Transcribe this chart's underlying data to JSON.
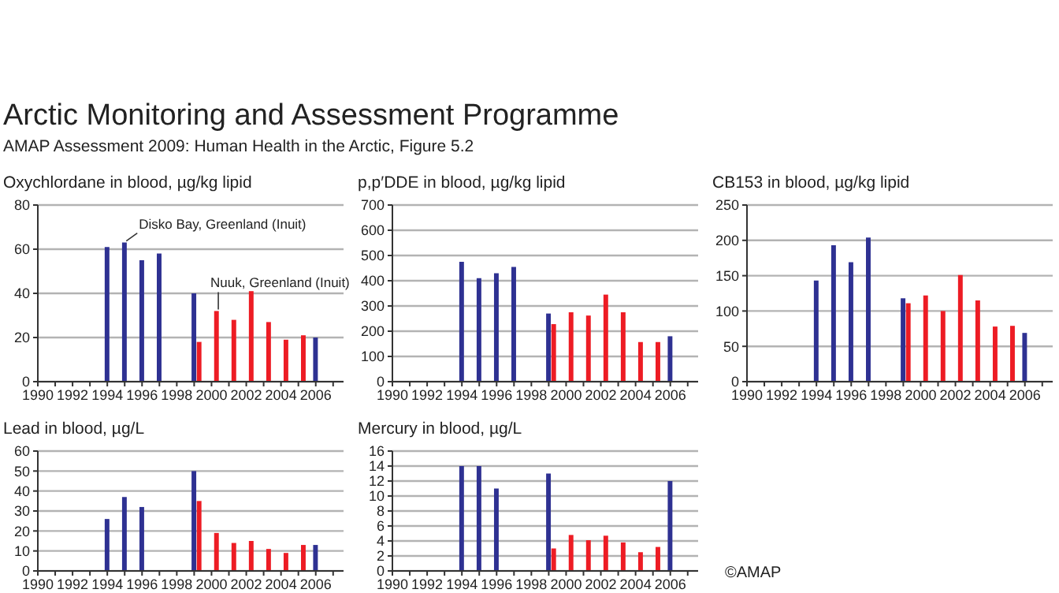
{
  "chart_data": [
    {
      "type": "bar",
      "title": "Oxychlordane in blood, µg/kg lipid",
      "xlim": [
        1990,
        2007.6
      ],
      "xticks": [
        1990,
        {
          "value": 1991,
          "label": null
        },
        1992,
        {
          "value": 1993,
          "label": null
        },
        1994,
        {
          "value": 1995,
          "label": null
        },
        1996,
        {
          "value": 1997,
          "label": null
        },
        1998,
        {
          "value": 1999,
          "label": null
        },
        2000,
        {
          "value": 2001,
          "label": null
        },
        2002,
        {
          "value": 2003,
          "label": null
        },
        2004,
        {
          "value": 2005,
          "label": null
        },
        2006,
        {
          "value": 2007,
          "label": null
        }
      ],
      "ylim": [
        0,
        80
      ],
      "yticks": [
        0,
        20,
        40,
        60,
        80
      ],
      "grid": "y",
      "series": [
        {
          "name": "Disko Bay, Greenland (Inuit)",
          "color": "#2e3192",
          "x": [
            1994,
            1995,
            1996,
            1997,
            1999,
            2006
          ],
          "values": [
            61,
            63,
            55,
            58,
            40,
            20
          ]
        },
        {
          "name": "Nuuk, Greenland (Inuit)",
          "color": "#ed1c24",
          "x": [
            1999.3,
            2000.3,
            2001.3,
            2002.3,
            2003.3,
            2004.3,
            2005.3
          ],
          "values": [
            18,
            32,
            28,
            41,
            27,
            19,
            21
          ]
        }
      ],
      "annotations": [
        "Arctic Monitoring and Assessment Programme",
        "AMAP Assessment 2009: Human Health in the Arctic, Figure 5.2"
      ]
    },
    {
      "type": "bar",
      "title": "p,p′DDE in blood, µg/kg lipid",
      "xlim": [
        1990,
        2007.6
      ],
      "xticks": [
        1990,
        {
          "value": 1991,
          "label": null
        },
        1992,
        {
          "value": 1993,
          "label": null
        },
        1994,
        {
          "value": 1995,
          "label": null
        },
        1996,
        {
          "value": 1997,
          "label": null
        },
        1998,
        {
          "value": 1999,
          "label": null
        },
        2000,
        {
          "value": 2001,
          "label": null
        },
        2002,
        {
          "value": 2003,
          "label": null
        },
        2004,
        {
          "value": 2005,
          "label": null
        },
        2006,
        {
          "value": 2007,
          "label": null
        }
      ],
      "ylim": [
        0,
        700
      ],
      "yticks": [
        0,
        100,
        200,
        300,
        400,
        500,
        600,
        700
      ],
      "grid": "y",
      "series": [
        {
          "color": "#2e3192",
          "x": [
            1994,
            1995,
            1996,
            1997,
            1999,
            2006
          ],
          "values": [
            475,
            410,
            430,
            455,
            270,
            180
          ]
        },
        {
          "color": "#ed1c24",
          "x": [
            1999.3,
            2000.3,
            2001.3,
            2002.3,
            2003.3,
            2004.3,
            2005.3
          ],
          "values": [
            228,
            275,
            262,
            345,
            275,
            157,
            157
          ]
        }
      ]
    },
    {
      "type": "bar",
      "title": "CB153 in blood, µg/kg lipid",
      "xlim": [
        1990,
        2007.6
      ],
      "xticks": [
        1990,
        {
          "value": 1991,
          "label": null
        },
        1992,
        {
          "value": 1993,
          "label": null
        },
        1994,
        {
          "value": 1995,
          "label": null
        },
        1996,
        {
          "value": 1997,
          "label": null
        },
        1998,
        {
          "value": 1999,
          "label": null
        },
        2000,
        {
          "value": 2001,
          "label": null
        },
        2002,
        {
          "value": 2003,
          "label": null
        },
        2004,
        {
          "value": 2005,
          "label": null
        },
        2006,
        {
          "value": 2007,
          "label": null
        }
      ],
      "ylim": [
        0,
        250
      ],
      "yticks": [
        0,
        50,
        100,
        150,
        200,
        250
      ],
      "grid": "y",
      "series": [
        {
          "color": "#2e3192",
          "x": [
            1994,
            1995,
            1996,
            1997,
            1999,
            2006
          ],
          "values": [
            143,
            193,
            169,
            204,
            118,
            69
          ]
        },
        {
          "color": "#ed1c24",
          "x": [
            1999.3,
            2000.3,
            2001.3,
            2002.3,
            2003.3,
            2004.3,
            2005.3
          ],
          "values": [
            111,
            122,
            100,
            151,
            115,
            78,
            79
          ]
        }
      ]
    },
    {
      "type": "bar",
      "title": "Lead in blood, µg/L",
      "xlim": [
        1990,
        2007.6
      ],
      "xticks": [
        1990,
        {
          "value": 1991,
          "label": null
        },
        1992,
        {
          "value": 1993,
          "label": null
        },
        1994,
        {
          "value": 1995,
          "label": null
        },
        1996,
        {
          "value": 1997,
          "label": null
        },
        1998,
        {
          "value": 1999,
          "label": null
        },
        2000,
        {
          "value": 2001,
          "label": null
        },
        2002,
        {
          "value": 2003,
          "label": null
        },
        2004,
        {
          "value": 2005,
          "label": null
        },
        2006,
        {
          "value": 2007,
          "label": null
        }
      ],
      "ylim": [
        0,
        60
      ],
      "yticks": [
        0,
        10,
        20,
        30,
        40,
        50,
        60
      ],
      "grid": "y",
      "series": [
        {
          "color": "#2e3192",
          "x": [
            1994,
            1995,
            1996,
            1999,
            2006
          ],
          "values": [
            26,
            37,
            32,
            50,
            13
          ]
        },
        {
          "color": "#ed1c24",
          "x": [
            1999.3,
            2000.3,
            2001.3,
            2002.3,
            2003.3,
            2004.3,
            2005.3
          ],
          "values": [
            35,
            19,
            14,
            15,
            11,
            9,
            13
          ]
        }
      ]
    },
    {
      "type": "bar",
      "title": "Mercury in blood, µg/L",
      "xlim": [
        1990,
        2007.6
      ],
      "xticks": [
        1990,
        {
          "value": 1991,
          "label": null
        },
        1992,
        {
          "value": 1993,
          "label": null
        },
        1994,
        {
          "value": 1995,
          "label": null
        },
        1996,
        {
          "value": 1997,
          "label": null
        },
        1998,
        {
          "value": 1999,
          "label": null
        },
        2000,
        {
          "value": 2001,
          "label": null
        },
        2002,
        {
          "value": 2003,
          "label": null
        },
        2004,
        {
          "value": 2005,
          "label": null
        },
        2006,
        {
          "value": 2007,
          "label": null
        }
      ],
      "ylim": [
        0,
        16
      ],
      "yticks": [
        0,
        2,
        4,
        6,
        8,
        10,
        12,
        14,
        16
      ],
      "grid": "y",
      "series": [
        {
          "color": "#2e3192",
          "x": [
            1994,
            1995,
            1996,
            1999,
            2006
          ],
          "values": [
            14,
            14,
            11,
            13,
            12
          ]
        },
        {
          "color": "#ed1c24",
          "x": [
            1999.3,
            2000.3,
            2001.3,
            2002.3,
            2003.3,
            2004.3,
            2005.3
          ],
          "values": [
            3,
            4.8,
            4.1,
            4.7,
            3.8,
            2.5,
            3.2
          ]
        }
      ],
      "annotations": [
        "©AMAP"
      ]
    }
  ]
}
